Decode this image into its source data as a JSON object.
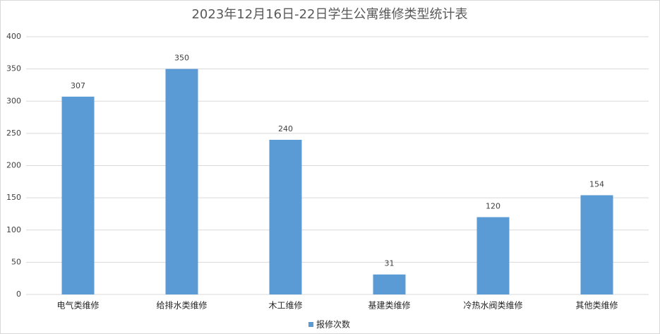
{
  "chart_data": {
    "type": "bar",
    "title": "2023年12月16日-22日学生公寓维修类型统计表",
    "categories": [
      "电气类维修",
      "给排水类维修",
      "木工维修",
      "基建类维修",
      "冷热水阀类维修",
      "其他类维修"
    ],
    "series": [
      {
        "name": "报修次数",
        "color": "#5b9bd5",
        "values": [
          307,
          350,
          240,
          31,
          120,
          154
        ]
      }
    ],
    "ylim": [
      0,
      400
    ],
    "yticks": [
      0,
      50,
      100,
      150,
      200,
      250,
      300,
      350,
      400
    ],
    "grid": true,
    "legend": "bottom"
  }
}
